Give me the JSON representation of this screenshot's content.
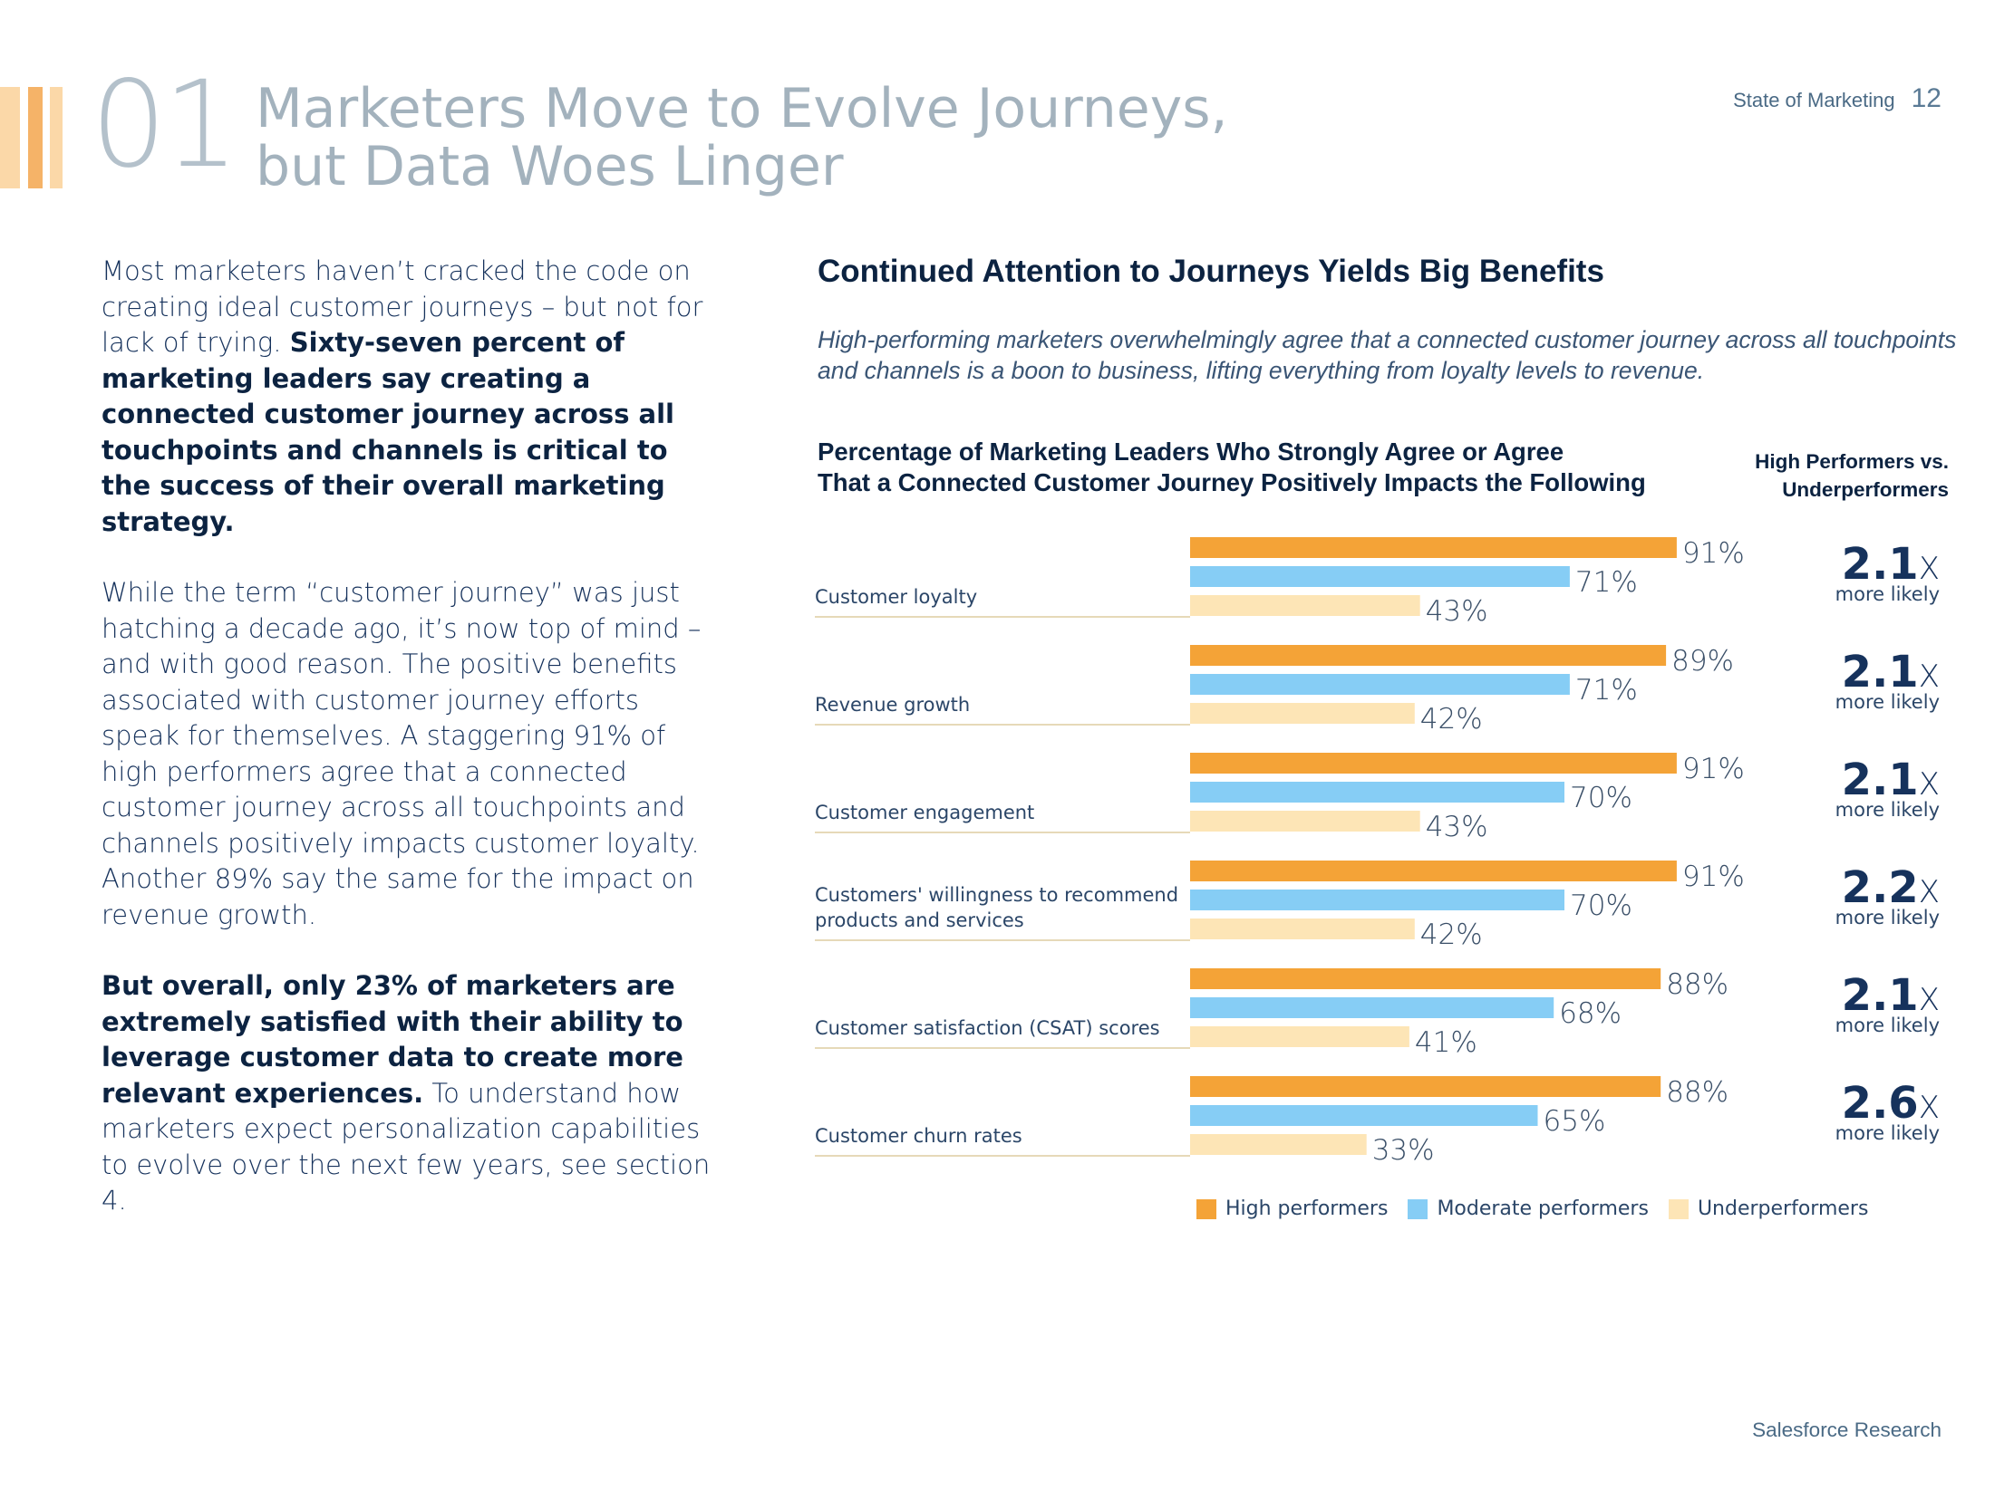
{
  "header": {
    "section_number": "01",
    "title": "Marketers Move to Evolve Journeys,\nbut Data Woes Linger",
    "publication": "State of Marketing",
    "page_number": "12"
  },
  "intro": {
    "p1_regular": "Most marketers haven’t cracked the code on creating ideal customer journeys – but not for lack of trying. ",
    "p1_bold": "Sixty-seven percent of marketing leaders say creating a connected customer journey across all touchpoints and channels is critical to the success of their overall marketing strategy.",
    "p2": "While the term “customer journey” was just hatching a decade ago, it’s now top of mind – and with good reason. The positive benefits associated with customer journey efforts speak for themselves. A staggering 91% of high performers agree that a connected customer journey across all touchpoints and channels positively impacts customer loyalty. Another 89% say the same for the impact on revenue growth.",
    "p3_bold": "But overall, only 23% of marketers are extremely satisfied with their ability to leverage customer data to create more relevant experiences.",
    "p3_regular": " To understand how marketers expect personalization capabilities to evolve over the next few years, see section 4."
  },
  "chart_section": {
    "heading": "Continued Attention to Journeys Yields Big Benefits",
    "subheading": "High-performing marketers overwhelmingly agree that a connected customer journey across all touchpoints and channels is a boon to business, lifting everything from loyalty levels to revenue.",
    "comparison_header": "High Performers vs.\nUnderperformers",
    "more_likely_label": "more likely"
  },
  "colors": {
    "high": "#f4a337",
    "moderate": "#86cdf5",
    "under": "#fde5b6",
    "divider": "#e6d9b8"
  },
  "chart_data": {
    "type": "bar",
    "orientation": "horizontal",
    "title": "Percentage of Marketing Leaders Who Strongly Agree or Agree\nThat a Connected Customer Journey Positively Impacts the Following",
    "categories": [
      "Customer loyalty",
      "Revenue growth",
      "Customer engagement",
      "Customers' willingness to recommend\nproducts and services",
      "Customer satisfaction (CSAT) scores",
      "Customer churn rates"
    ],
    "series": [
      {
        "name": "High performers",
        "values": [
          91,
          89,
          91,
          91,
          88,
          88
        ]
      },
      {
        "name": "Moderate performers",
        "values": [
          71,
          71,
          70,
          70,
          68,
          65
        ]
      },
      {
        "name": "Underperformers",
        "values": [
          43,
          42,
          43,
          42,
          41,
          33
        ]
      }
    ],
    "value_suffix": "%",
    "multipliers": [
      "2.1",
      "2.1",
      "2.1",
      "2.2",
      "2.1",
      "2.6"
    ],
    "multiplier_suffix": "X",
    "xlim": [
      0,
      100
    ],
    "legend_position": "bottom"
  },
  "footer": {
    "source": "Salesforce Research"
  }
}
